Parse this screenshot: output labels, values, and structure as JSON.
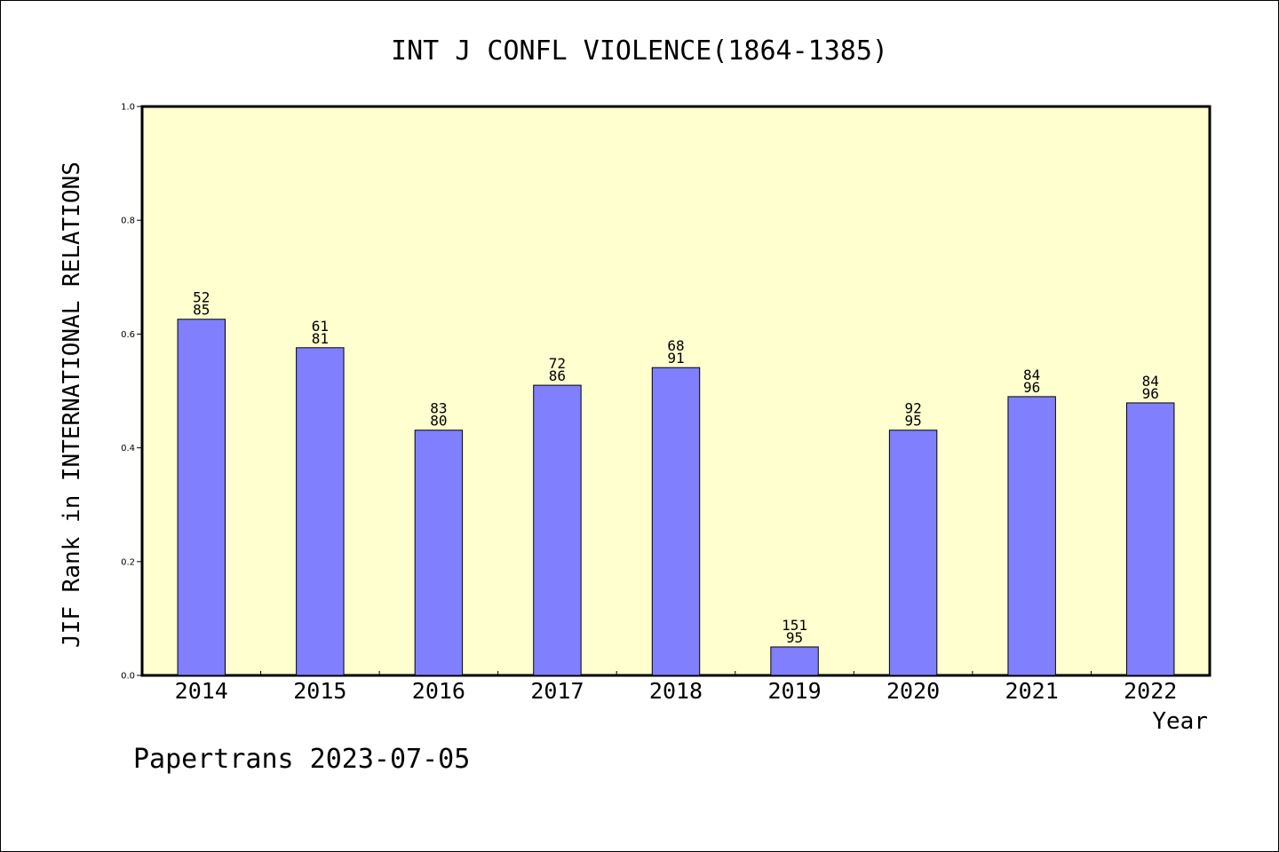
{
  "chart_data": {
    "type": "bar",
    "title": "INT J CONFL VIOLENCE(1864-1385)",
    "xlabel": "Year",
    "ylabel": "JIF Rank in INTERNATIONAL RELATIONS",
    "ylim": [
      0,
      1.0
    ],
    "yticks": [
      "0.0",
      "0.2",
      "0.4",
      "0.6",
      "0.8",
      "1.0"
    ],
    "categories": [
      "2014",
      "2015",
      "2016",
      "2017",
      "2018",
      "2019",
      "2020",
      "2021",
      "2022"
    ],
    "values": [
      0.626,
      0.576,
      0.431,
      0.51,
      0.541,
      0.05,
      0.431,
      0.49,
      0.479
    ],
    "labels_top": [
      "52",
      "61",
      "83",
      "72",
      "68",
      "151",
      "92",
      "84",
      "84"
    ],
    "labels_bottom": [
      "85",
      "81",
      "80",
      "86",
      "91",
      "95",
      "95",
      "96",
      "96"
    ],
    "grid": false,
    "colors": {
      "plot_bg": "#FFFFD0",
      "bar": "#8080FF"
    }
  },
  "footer": {
    "text": "Papertrans 2023-07-05"
  }
}
